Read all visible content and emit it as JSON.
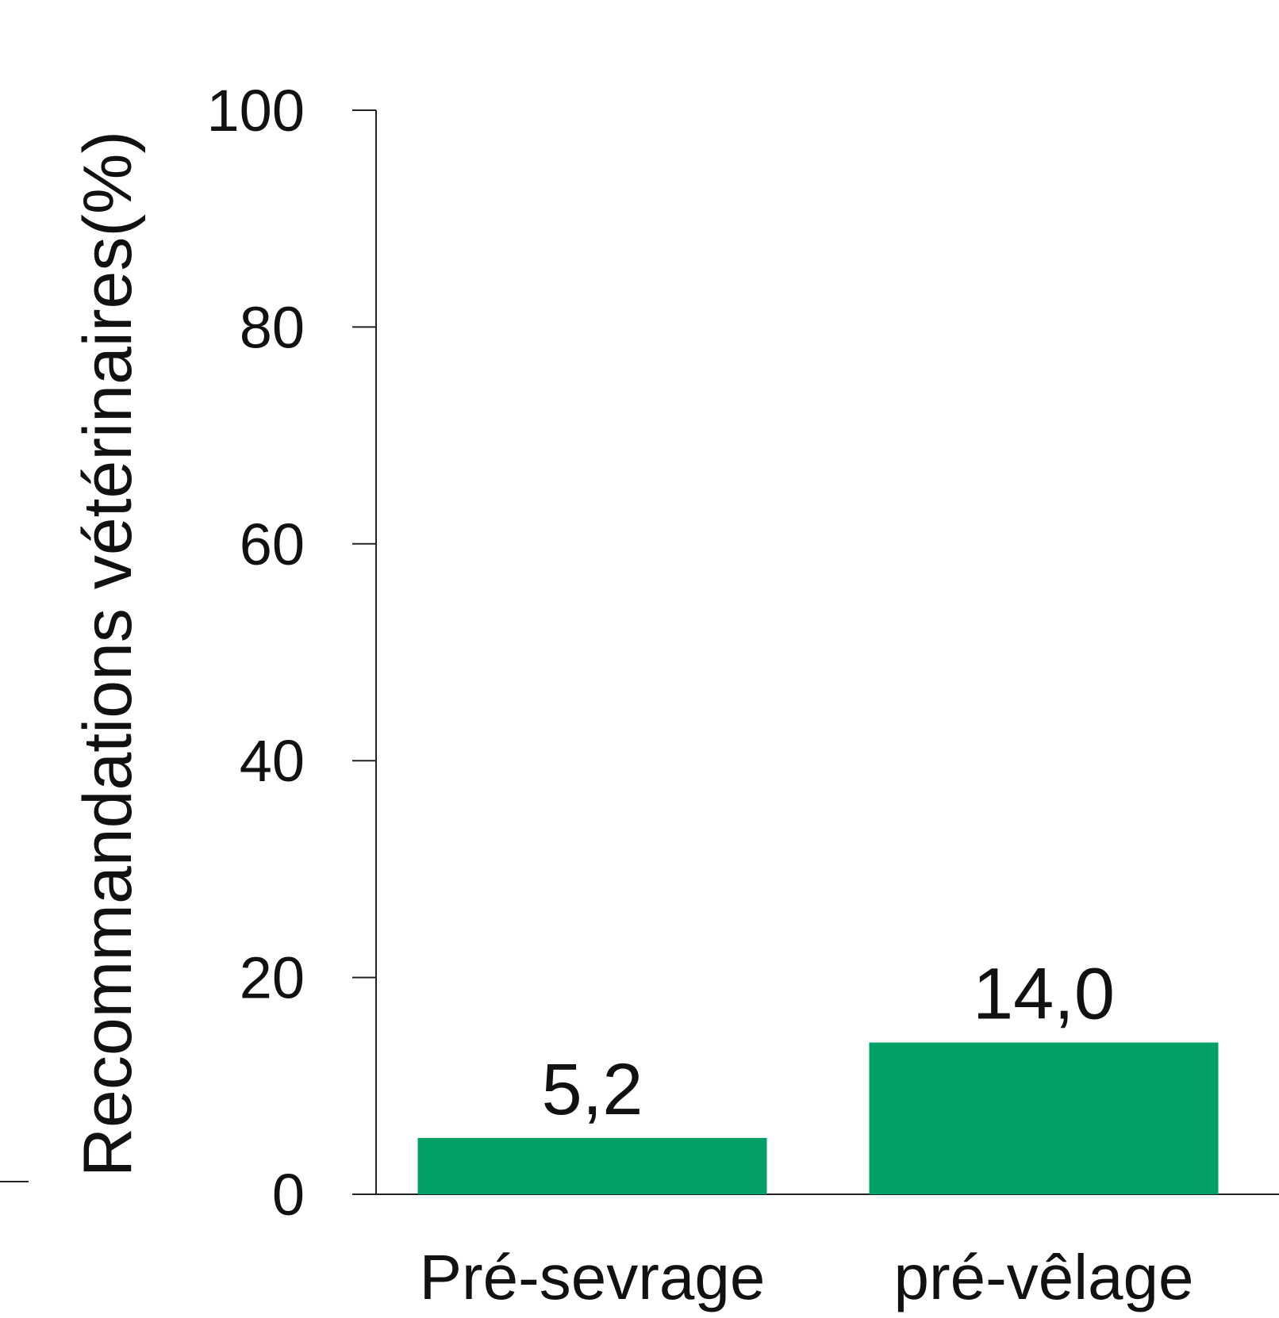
{
  "chart_data": {
    "type": "bar",
    "title": "",
    "xlabel": "",
    "ylabel": "Recommandations vétérinaires(%)",
    "categories": [
      "Pré-sevrage",
      "pré-vêlage"
    ],
    "values": [
      5.2,
      14.0
    ],
    "data_labels": [
      "5,2",
      "14,0"
    ],
    "ylim": [
      0,
      100
    ],
    "yticks": [
      0,
      20,
      40,
      60,
      80,
      100
    ],
    "ytick_labels": [
      "0",
      "20",
      "40",
      "60",
      "80",
      "100"
    ],
    "grid": false,
    "legend": "none",
    "bar_color": "#00a066",
    "axis_color": "#222222"
  }
}
